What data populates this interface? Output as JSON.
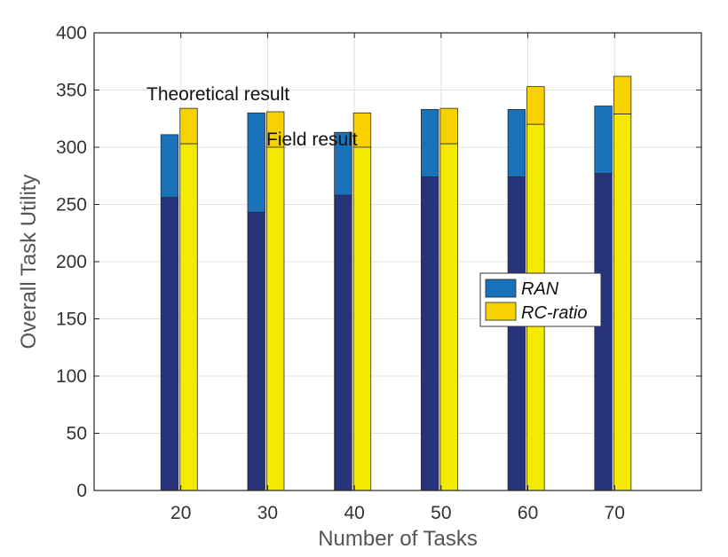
{
  "chart_data": {
    "type": "bar",
    "title": "",
    "xlabel": "Number of Tasks",
    "ylabel": "Overall Task Utility",
    "categories": [
      "20",
      "30",
      "40",
      "50",
      "60",
      "70"
    ],
    "ylim": [
      0,
      400
    ],
    "yticks": [
      "0",
      "50",
      "100",
      "150",
      "200",
      "250",
      "300",
      "350",
      "400"
    ],
    "grid": true,
    "legend_position": "center-right",
    "series": [
      {
        "name": "RAN",
        "field_values": [
          256,
          243,
          258,
          274,
          274,
          277
        ],
        "theoretical_values": [
          311,
          330,
          313,
          333,
          333,
          336
        ],
        "field_color": "#27337a",
        "theoretical_color": "#1a72bb"
      },
      {
        "name": "RC-ratio",
        "field_values": [
          303,
          300,
          300,
          303,
          320,
          329
        ],
        "theoretical_values": [
          334,
          331,
          330,
          334,
          353,
          362
        ],
        "field_color": "#f4ea00",
        "theoretical_color": "#f8d200"
      }
    ],
    "annotations": [
      "Theoretical result",
      "Field result"
    ]
  }
}
